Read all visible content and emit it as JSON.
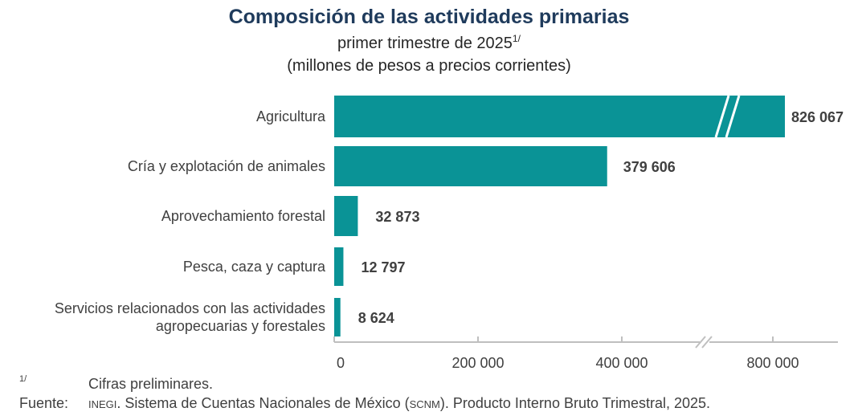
{
  "header": {
    "title": "Composición de las actividades primarias",
    "subtitle": "primer trimestre de 2025",
    "subtitle_mark": "1/",
    "units": "(millones de pesos a precios corrientes)"
  },
  "footer": {
    "note_mark": "1/",
    "note_text": "Cifras preliminares.",
    "source_label": "Fuente:",
    "source_org": "inegi",
    "source_mid": ". Sistema de Cuentas Nacionales de México (",
    "source_abbr": "scnm",
    "source_end": "). Producto Interno Bruto Trimestral, 2025."
  },
  "colors": {
    "bar": "#0a9396",
    "axis": "#bfbfbf",
    "label": "#404040",
    "value": "#404040"
  },
  "chart_data": {
    "type": "bar",
    "orientation": "horizontal",
    "title": "Composición de las actividades primarias",
    "subtitle": "primer trimestre de 2025",
    "units": "millones de pesos a precios corrientes",
    "categories": [
      "Agricultura",
      "Cría y explotación de animales",
      "Aprovechamiento forestal",
      "Pesca, caza y captura",
      "Servicios relacionados con las actividades agropecuarias y forestales"
    ],
    "category_lines": [
      [
        "Agricultura"
      ],
      [
        "Cría y explotación de animales"
      ],
      [
        "Aprovechamiento forestal"
      ],
      [
        "Pesca, caza y captura"
      ],
      [
        "Servicios relacionados con las actividades",
        "agropecuarias y forestales"
      ]
    ],
    "values": [
      826067,
      379606,
      32873,
      12797,
      8624
    ],
    "value_labels": [
      "826 067",
      "379 606",
      "32 873",
      "12 797",
      "8 624"
    ],
    "xticks": [
      0,
      200000,
      400000,
      800000
    ],
    "xtick_labels": [
      "0",
      "200 000",
      "400 000",
      "800 000"
    ],
    "axis_break": {
      "after": 500000,
      "resume": 700000
    },
    "xlim": [
      0,
      900000
    ],
    "grid": false,
    "legend": "none"
  }
}
